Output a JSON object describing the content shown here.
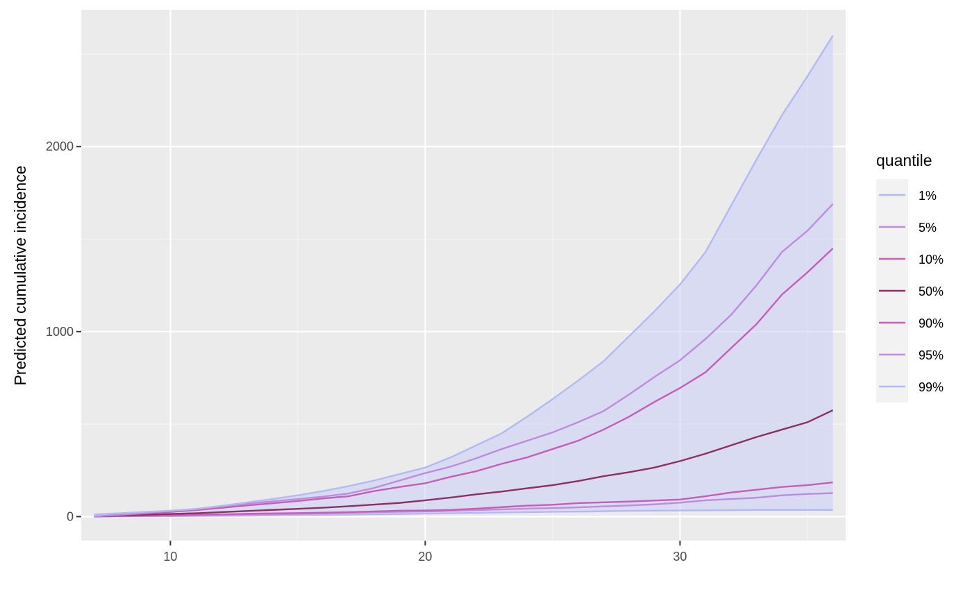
{
  "chart_data": {
    "type": "line",
    "title": "",
    "xlabel": "",
    "ylabel": "Predicted cumulative incidence",
    "xlim": [
      6.5,
      36.5
    ],
    "ylim": [
      -130,
      2740
    ],
    "x_major_ticks": [
      10,
      20,
      30
    ],
    "x_minor_ticks": [
      15,
      25,
      35
    ],
    "y_major_ticks": [
      0,
      1000,
      2000
    ],
    "y_minor_ticks": [
      500,
      1500,
      2500
    ],
    "x_tick_labels": [
      "10",
      "20",
      "30"
    ],
    "y_tick_labels": [
      "0",
      "1000",
      "2000"
    ],
    "grid": true,
    "panel_background": "#EBEBEB",
    "band": {
      "lower": "1%",
      "upper": "99%",
      "fill": "#C8CDF7",
      "opacity": 0.55
    },
    "legend": {
      "title": "quantile",
      "position": "right"
    },
    "x": [
      7,
      8,
      9,
      10,
      11,
      12,
      13,
      14,
      15,
      16,
      17,
      18,
      19,
      20,
      21,
      22,
      23,
      24,
      25,
      26,
      27,
      28,
      29,
      30,
      31,
      32,
      33,
      34,
      35,
      36
    ],
    "series": [
      {
        "name": "1%",
        "color": "#B4B9F3",
        "values": [
          0,
          1,
          2,
          2,
          3,
          4,
          5,
          6,
          7,
          8,
          10,
          12,
          14,
          16,
          18,
          20,
          22,
          24,
          26,
          27,
          29,
          31,
          32,
          33,
          34,
          35,
          36,
          36,
          36,
          36
        ]
      },
      {
        "name": "5%",
        "color": "#BF8BDD",
        "values": [
          0,
          2,
          4,
          5,
          7,
          9,
          11,
          13,
          15,
          17,
          20,
          23,
          26,
          28,
          31,
          35,
          39,
          43,
          46,
          50,
          55,
          60,
          66,
          75,
          88,
          95,
          102,
          115,
          122,
          127
        ]
      },
      {
        "name": "10%",
        "color": "#C85DB5",
        "values": [
          0,
          3,
          5,
          7,
          10,
          12,
          15,
          17,
          19,
          21,
          24,
          28,
          32,
          33,
          36,
          43,
          51,
          59,
          64,
          73,
          77,
          81,
          87,
          92,
          110,
          130,
          145,
          160,
          170,
          185
        ]
      },
      {
        "name": "50%",
        "color": "#8E2F63",
        "values": [
          0,
          6,
          10,
          14,
          18,
          24,
          30,
          36,
          42,
          48,
          56,
          65,
          74,
          88,
          103,
          120,
          135,
          153,
          170,
          192,
          218,
          240,
          265,
          300,
          340,
          385,
          430,
          470,
          510,
          575
        ]
      },
      {
        "name": "90%",
        "color": "#C85DB5",
        "values": [
          0,
          9,
          17,
          25,
          35,
          47,
          60,
          72,
          84,
          98,
          110,
          138,
          160,
          180,
          215,
          245,
          285,
          320,
          365,
          410,
          470,
          540,
          620,
          695,
          780,
          910,
          1040,
          1200,
          1320,
          1450
        ]
      },
      {
        "name": "95%",
        "color": "#BF8BDD",
        "values": [
          0,
          10,
          20,
          30,
          40,
          55,
          70,
          82,
          95,
          108,
          125,
          155,
          195,
          235,
          270,
          315,
          365,
          410,
          455,
          510,
          570,
          660,
          755,
          845,
          960,
          1090,
          1250,
          1430,
          1545,
          1690
        ]
      },
      {
        "name": "99%",
        "color": "#B4B9F3",
        "values": [
          12,
          18,
          25,
          32,
          42,
          58,
          76,
          95,
          115,
          138,
          165,
          195,
          230,
          265,
          320,
          385,
          450,
          540,
          635,
          735,
          840,
          975,
          1110,
          1255,
          1430,
          1680,
          1930,
          2170,
          2380,
          2600
        ]
      }
    ]
  }
}
